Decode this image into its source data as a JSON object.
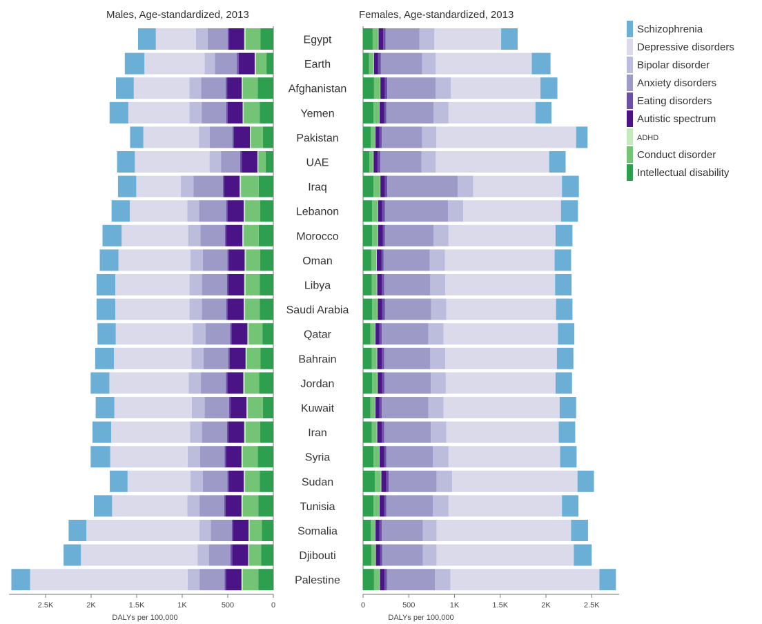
{
  "chart_data": {
    "type": "bar",
    "orientation": "horizontal",
    "layout": "back-to-back stacked",
    "panels": [
      {
        "key": "males",
        "title": "Males, Age-standardized, 2013",
        "direction": "right-to-left",
        "xlim": [
          0,
          2900
        ],
        "ticks": [
          0,
          500,
          1000,
          1500,
          2000,
          2500
        ],
        "tick_labels": [
          "0",
          "500",
          "1K",
          "1.5K",
          "2K",
          "2.5K"
        ],
        "xlabel": "DALYs per 100,000"
      },
      {
        "key": "females",
        "title": "Females, Age-standardized, 2013",
        "direction": "left-to-right",
        "xlim": [
          0,
          2800
        ],
        "ticks": [
          0,
          500,
          1000,
          1500,
          2000,
          2500
        ],
        "tick_labels": [
          "0",
          "500",
          "1K",
          "1.5K",
          "2K",
          "2.5K"
        ],
        "xlabel": "DALYs per 100,000"
      }
    ],
    "categories": [
      "Egypt",
      "Earth",
      "Afghanistan",
      "Yemen",
      "Pakistan",
      "UAE",
      "Iraq",
      "Lebanon",
      "Morocco",
      "Oman",
      "Libya",
      "Saudi Arabia",
      "Qatar",
      "Bahrain",
      "Jordan",
      "Kuwait",
      "Iran",
      "Syria",
      "Sudan",
      "Tunisia",
      "Somalia",
      "Djibouti",
      "Palestine"
    ],
    "series": [
      {
        "name": "Intellectual disability",
        "color": "#2e9e4f",
        "males": [
          140,
          75,
          170,
          150,
          115,
          85,
          160,
          145,
          160,
          145,
          150,
          150,
          120,
          140,
          155,
          115,
          145,
          170,
          150,
          165,
          125,
          135,
          165
        ],
        "females": [
          105,
          65,
          120,
          115,
          85,
          70,
          115,
          100,
          100,
          90,
          95,
          100,
          80,
          95,
          100,
          80,
          95,
          115,
          130,
          115,
          85,
          90,
          120
        ]
      },
      {
        "name": "Conduct disorder",
        "color": "#74c476",
        "males": [
          165,
          115,
          165,
          175,
          130,
          80,
          195,
          165,
          165,
          155,
          155,
          160,
          150,
          150,
          160,
          165,
          160,
          165,
          160,
          170,
          135,
          130,
          170
        ],
        "females": [
          60,
          50,
          65,
          60,
          45,
          40,
          70,
          60,
          60,
          55,
          55,
          55,
          50,
          55,
          55,
          50,
          55,
          60,
          65,
          60,
          45,
          45,
          60
        ]
      },
      {
        "name": "ADHD",
        "color": "#c7e9c0",
        "males": [
          15,
          15,
          12,
          12,
          12,
          10,
          15,
          15,
          15,
          15,
          15,
          15,
          15,
          15,
          15,
          15,
          15,
          15,
          15,
          15,
          12,
          12,
          15
        ],
        "females": [
          5,
          5,
          5,
          5,
          5,
          5,
          5,
          5,
          5,
          5,
          5,
          5,
          5,
          5,
          5,
          5,
          5,
          5,
          5,
          5,
          5,
          5,
          5
        ]
      },
      {
        "name": "Autistic spectrum",
        "color": "#4a1486",
        "males": [
          165,
          175,
          160,
          165,
          175,
          170,
          170,
          175,
          175,
          175,
          175,
          175,
          175,
          175,
          175,
          175,
          175,
          170,
          165,
          175,
          170,
          175,
          170
        ],
        "females": [
          50,
          45,
          50,
          50,
          45,
          45,
          50,
          45,
          50,
          50,
          50,
          50,
          45,
          50,
          50,
          45,
          50,
          50,
          55,
          50,
          45,
          45,
          50
        ]
      },
      {
        "name": "Eating disorders",
        "color": "#6a51a3",
        "males": [
          15,
          20,
          15,
          15,
          15,
          20,
          15,
          15,
          15,
          15,
          15,
          15,
          15,
          15,
          15,
          15,
          15,
          15,
          15,
          15,
          15,
          20,
          15
        ],
        "females": [
          25,
          30,
          25,
          25,
          25,
          30,
          25,
          30,
          25,
          25,
          25,
          30,
          25,
          25,
          25,
          25,
          25,
          25,
          25,
          25,
          25,
          25,
          25
        ]
      },
      {
        "name": "Anxiety disorders",
        "color": "#9e9ac8",
        "males": [
          220,
          240,
          270,
          270,
          250,
          210,
          320,
          300,
          270,
          270,
          275,
          270,
          270,
          270,
          275,
          270,
          275,
          270,
          270,
          270,
          230,
          235,
          275
        ],
        "females": [
          370,
          450,
          530,
          515,
          440,
          450,
          770,
          690,
          530,
          505,
          505,
          505,
          510,
          505,
          505,
          510,
          510,
          510,
          525,
          510,
          450,
          445,
          525
        ]
      },
      {
        "name": "Bipolar disorder",
        "color": "#bcbddc",
        "males": [
          130,
          115,
          130,
          135,
          120,
          125,
          140,
          130,
          135,
          135,
          135,
          135,
          140,
          135,
          135,
          140,
          130,
          135,
          135,
          135,
          125,
          125,
          130
        ],
        "females": [
          165,
          150,
          165,
          165,
          155,
          155,
          170,
          165,
          165,
          165,
          165,
          165,
          165,
          165,
          165,
          165,
          170,
          170,
          170,
          170,
          150,
          150,
          170
        ]
      },
      {
        "name": "Depressive disorders",
        "color": "#dadaeb",
        "males": [
          440,
          660,
          610,
          670,
          610,
          820,
          490,
          630,
          730,
          790,
          815,
          815,
          845,
          850,
          870,
          850,
          865,
          850,
          690,
          825,
          1240,
          1280,
          1730
        ],
        "females": [
          730,
          1050,
          980,
          950,
          1530,
          1240,
          970,
          1070,
          1170,
          1200,
          1200,
          1200,
          1250,
          1220,
          1200,
          1270,
          1230,
          1220,
          1370,
          1240,
          1470,
          1500,
          1630
        ]
      },
      {
        "name": "Schizophrenia",
        "color": "#6baed6",
        "males": [
          195,
          215,
          195,
          205,
          145,
          195,
          200,
          200,
          210,
          205,
          205,
          205,
          200,
          205,
          205,
          205,
          205,
          215,
          195,
          200,
          195,
          190,
          205
        ],
        "females": [
          180,
          205,
          185,
          175,
          125,
          180,
          185,
          185,
          185,
          180,
          180,
          180,
          180,
          180,
          180,
          180,
          180,
          180,
          180,
          180,
          185,
          195,
          180
        ]
      }
    ],
    "legend": {
      "placement": "top-right",
      "order": [
        "Schizophrenia",
        "Depressive disorders",
        "Bipolar disorder",
        "Anxiety disorders",
        "Eating disorders",
        "Autistic spectrum",
        "ADHD",
        "Conduct disorder",
        "Intellectual disability"
      ]
    },
    "grid": false
  }
}
